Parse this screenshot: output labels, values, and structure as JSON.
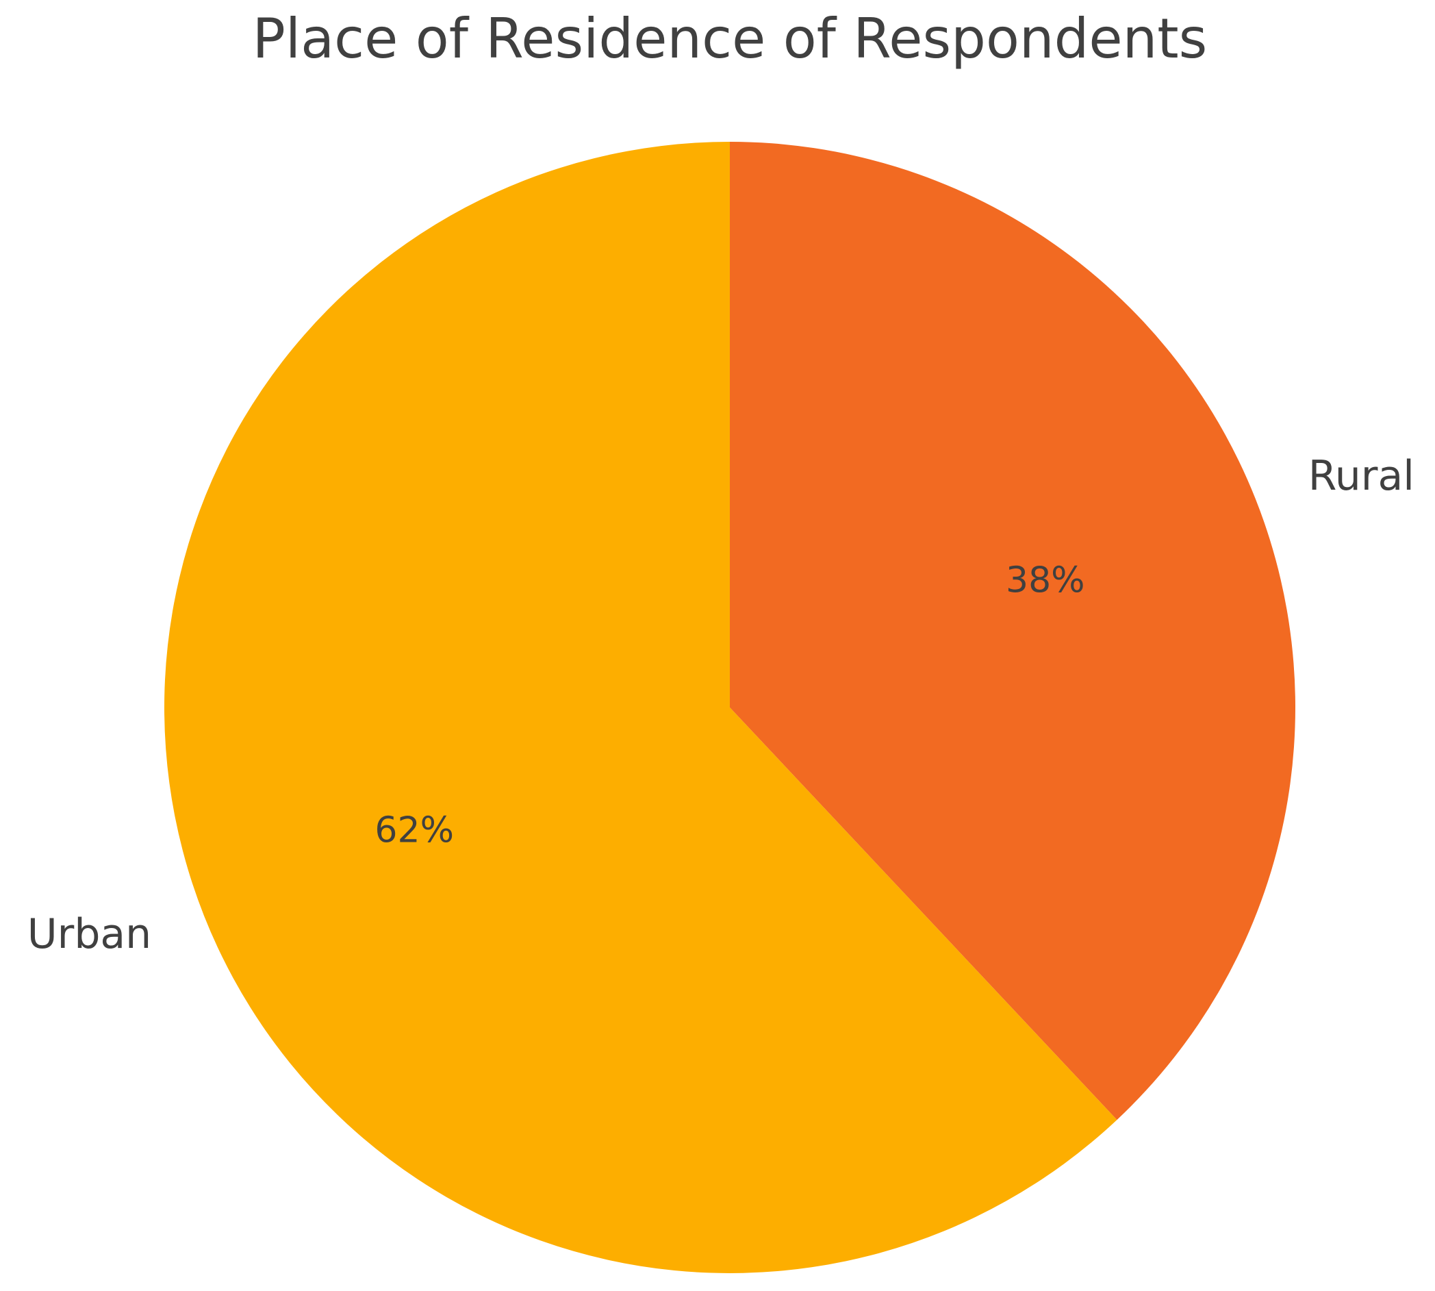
{
  "chart_data": {
    "type": "pie",
    "title": "Place of Residence of Respondents",
    "categories": [
      "Rural",
      "Urban"
    ],
    "values": [
      38,
      62
    ],
    "value_labels": [
      "38%",
      "62%"
    ],
    "colors": [
      "#f26a22",
      "#fdae00"
    ]
  }
}
